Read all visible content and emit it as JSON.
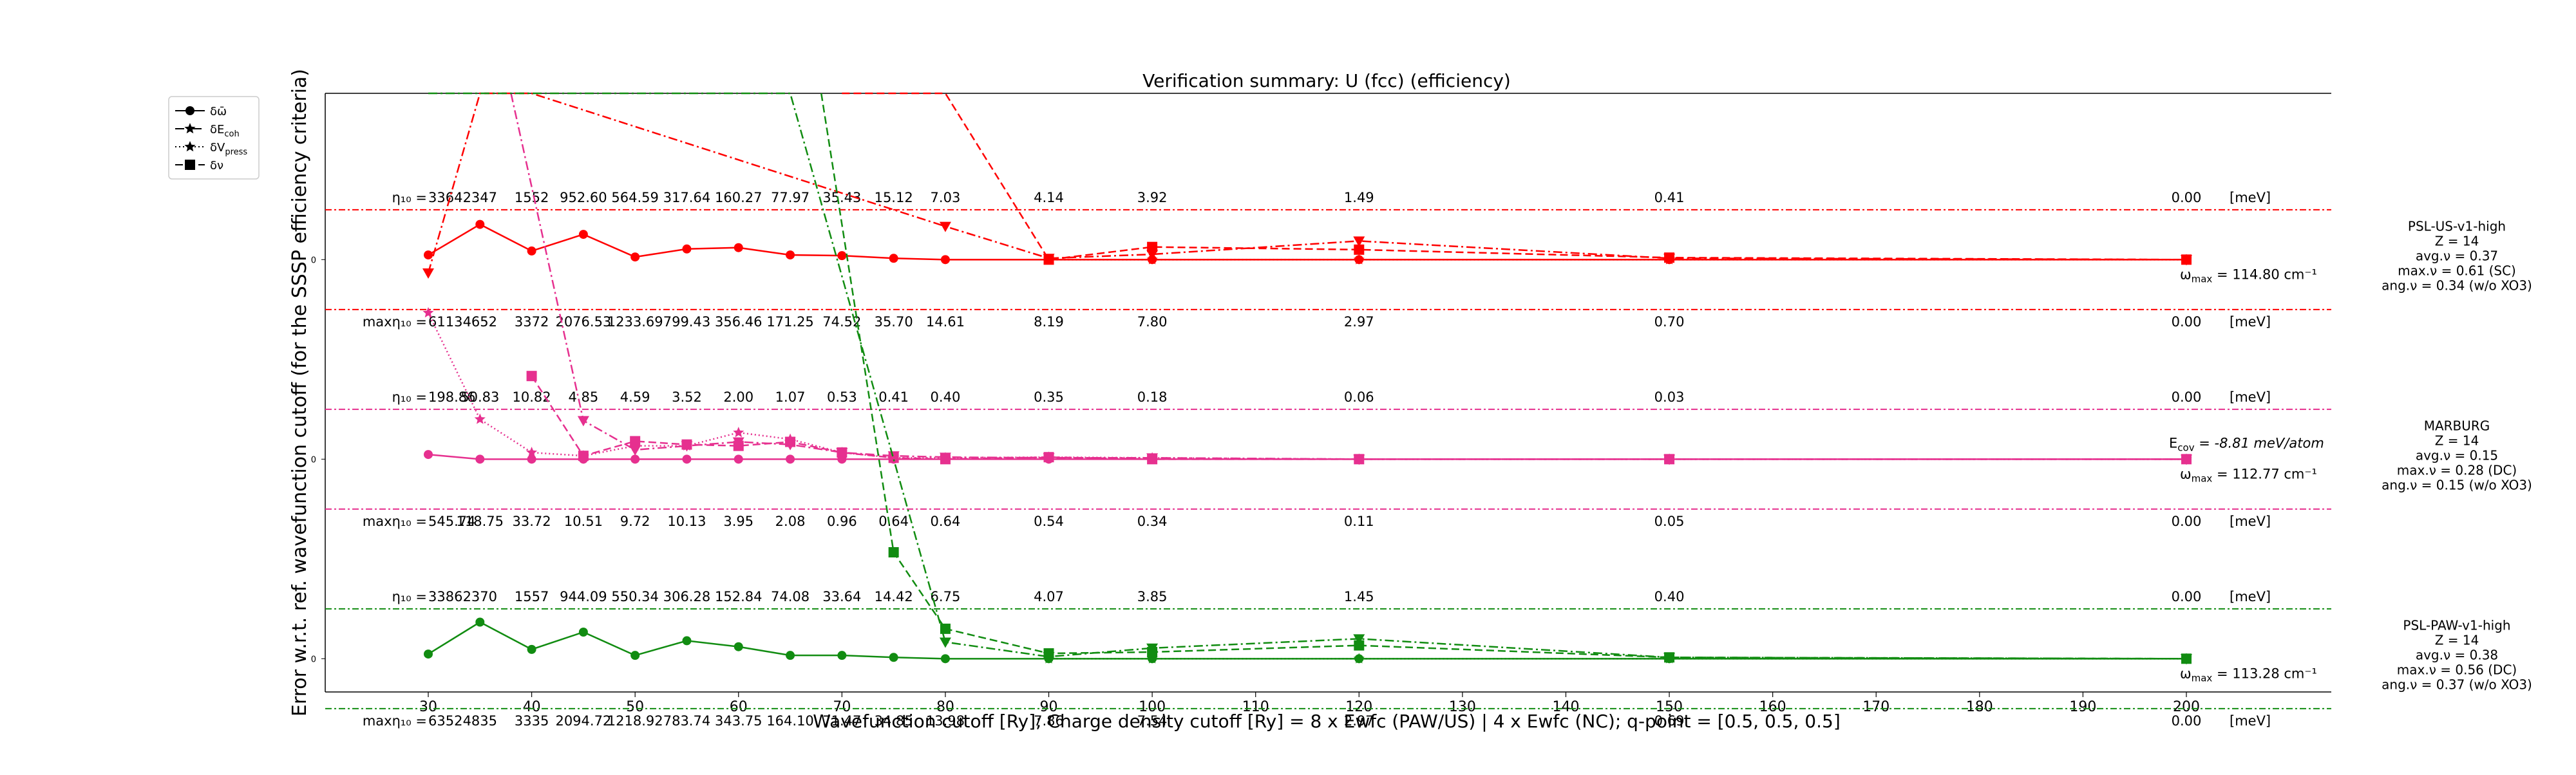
{
  "chart_data": {
    "type": "line",
    "title": "Verification summary: U (fcc) (efficiency)",
    "xlabel": "Wavefunction cutoff [Ry]; Charge density cutoff [Ry] = 8 x Ewfc (PAW/US) | 4 x Ewfc (NC); q-point = [0.5, 0.5, 0.5]",
    "ylabel": "Error w.r.t. ref. wavefunction cutoff (for the SSSP efficiency criteria)",
    "xlim": [
      20,
      215
    ],
    "xticks": [
      30,
      40,
      50,
      60,
      70,
      80,
      90,
      100,
      110,
      120,
      130,
      140,
      150,
      160,
      170,
      180,
      190,
      200
    ],
    "ylim": [
      -0.5,
      8.5
    ],
    "legend": {
      "placement": "outside-top-left",
      "entries": [
        {
          "label": "δω̄",
          "style": "solid",
          "marker": "circle"
        },
        {
          "label": "δE",
          "sub": "coh",
          "style": "dashdot",
          "marker": "star"
        },
        {
          "label": "δV",
          "sub": "press",
          "style": "dotted",
          "marker": "star"
        },
        {
          "label": "δν",
          "style": "dashed",
          "marker": "square"
        }
      ]
    },
    "panels": [
      {
        "name": "PSL-US-v1-high",
        "color": "#ff0000",
        "offset": 6,
        "zero_label": "0",
        "info": [
          "PSL-US-v1-high",
          "Z = 14",
          "avg.ν = 0.37",
          "max.ν = 0.61 (SC)",
          "ang.ν = 0.34 (w/o XO3)"
        ],
        "omega_label": "ω",
        "omega_sub": "max",
        "omega_value": " = 114.80 cm⁻¹",
        "eta_prefix": "η₁₀ = ",
        "eta_x": [
          30,
          35,
          40,
          45,
          50,
          55,
          60,
          65,
          70,
          75,
          80,
          90,
          100,
          120,
          150,
          200
        ],
        "eta": [
          "3364",
          "2347",
          "1552",
          "952.60",
          "564.59",
          "317.64",
          "160.27",
          "77.97",
          "35.43",
          "15.12",
          "7.03",
          "4.14",
          "3.92",
          "1.49",
          "0.41",
          "0.00"
        ],
        "eta_unit": "[meV]",
        "maxeta_prefix": "maxη₁₀ = ",
        "maxeta": [
          "6113",
          "4652",
          "3372",
          "2076.53",
          "1233.69",
          "799.43",
          "356.46",
          "171.25",
          "74.52",
          "35.70",
          "14.61",
          "8.19",
          "7.80",
          "2.97",
          "0.70",
          "0.00"
        ],
        "maxeta_x": [
          30,
          35,
          40,
          45,
          50,
          55,
          60,
          65,
          70,
          75,
          80,
          90,
          100,
          120,
          150,
          200
        ],
        "maxeta_unit": "[meV]",
        "series": [
          {
            "name": "δω̄",
            "x": [
              30,
              35,
              40,
              45,
              50,
              55,
              60,
              65,
              70,
              75,
              80,
              90,
              100,
              120,
              150,
              200
            ],
            "y": [
              0.07,
              0.53,
              0.13,
              0.38,
              0.04,
              0.16,
              0.18,
              0.07,
              0.06,
              0.02,
              0.0,
              0.0,
              0.0,
              0.0,
              0.0,
              0.0
            ]
          },
          {
            "name": "δE_coh",
            "x": [
              30,
              35,
              40,
              80,
              90,
              100,
              120,
              150,
              200
            ],
            "y": [
              -0.2,
              6.2,
              8.7,
              0.5,
              0.02,
              0.08,
              0.28,
              0.02,
              0.0
            ]
          },
          {
            "name": "δV_press",
            "x": [
              90,
              100,
              120,
              150,
              200
            ],
            "y": [
              0.0,
              0.0,
              0.0,
              0.0,
              0.0
            ]
          },
          {
            "name": "δν",
            "x": [
              70,
              80,
              90,
              100,
              120,
              150,
              200
            ],
            "y": [
              6.5,
              2.8,
              0.0,
              0.19,
              0.15,
              0.03,
              0.0
            ]
          }
        ]
      },
      {
        "name": "MARBURG",
        "color": "#e6308f",
        "offset": 3,
        "zero_label": "0",
        "info": [
          "MARBURG",
          "Z = 14",
          "avg.ν = 0.15",
          "max.ν = 0.28 (DC)",
          "ang.ν = 0.15 (w/o XO3)"
        ],
        "omega_label": "ω",
        "omega_sub": "max",
        "omega_value": " = 112.77 cm⁻¹",
        "ecov_label": "E",
        "ecov_sub": "cov",
        "ecov_value": " = -8.81 meV/atom",
        "eta_prefix": "η₁₀ = ",
        "eta_x": [
          30,
          35,
          40,
          45,
          50,
          55,
          60,
          65,
          70,
          75,
          80,
          90,
          100,
          120,
          150,
          200
        ],
        "eta": [
          "198.86",
          "50.83",
          "10.82",
          "4.85",
          "4.59",
          "3.52",
          "2.00",
          "1.07",
          "0.53",
          "0.41",
          "0.40",
          "0.35",
          "0.18",
          "0.06",
          "0.03",
          "0.00"
        ],
        "eta_unit": "[meV]",
        "maxeta_prefix": "maxη₁₀ = ",
        "maxeta": [
          "545.74",
          "118.75",
          "33.72",
          "10.51",
          "9.72",
          "10.13",
          "3.95",
          "2.08",
          "0.96",
          "0.64",
          "0.64",
          "0.54",
          "0.34",
          "0.11",
          "0.05",
          "0.00"
        ],
        "maxeta_x": [
          30,
          35,
          40,
          45,
          50,
          55,
          60,
          65,
          70,
          75,
          80,
          90,
          100,
          120,
          150,
          200
        ],
        "maxeta_unit": "[meV]",
        "series": [
          {
            "name": "δω̄",
            "x": [
              30,
              35,
              40,
              45,
              50,
              55,
              60,
              65,
              70,
              75,
              80,
              90,
              100,
              120,
              150,
              200
            ],
            "y": [
              0.07,
              0.0,
              0.0,
              0.0,
              0.0,
              0.0,
              0.0,
              0.0,
              0.0,
              0.0,
              0.0,
              0.0,
              0.0,
              0.0,
              0.0,
              0.0
            ]
          },
          {
            "name": "δE_coh",
            "x": [
              38,
              45,
              50,
              55,
              60,
              65,
              70,
              75,
              80,
              90,
              100,
              120,
              150,
              200
            ],
            "y": [
              8.7,
              0.58,
              0.14,
              0.2,
              0.26,
              0.22,
              0.1,
              0.05,
              0.03,
              0.02,
              0.02,
              0.0,
              0.0,
              0.0
            ]
          },
          {
            "name": "δV_press",
            "x": [
              30,
              35,
              40,
              45,
              50,
              55,
              60,
              65,
              70,
              75,
              80,
              90,
              100,
              120,
              150,
              200
            ],
            "y": [
              2.2,
              0.6,
              0.1,
              0.05,
              0.2,
              0.2,
              0.4,
              0.3,
              0.1,
              0.02,
              0.02,
              0.03,
              0.02,
              0.0,
              0.0,
              0.0
            ]
          },
          {
            "name": "δν",
            "x": [
              40,
              45,
              50,
              55,
              60,
              65,
              70,
              75,
              80,
              90,
              100,
              120,
              150,
              200
            ],
            "y": [
              1.25,
              0.05,
              0.27,
              0.22,
              0.2,
              0.26,
              0.1,
              0.02,
              0.0,
              0.03,
              0.0,
              0.0,
              0.0,
              0.0
            ]
          }
        ]
      },
      {
        "name": "PSL-PAW-v1-high",
        "color": "#118c11",
        "offset": 0,
        "zero_label": "0",
        "info": [
          "PSL-PAW-v1-high",
          "Z = 14",
          "avg.ν = 0.38",
          "max.ν = 0.56 (DC)",
          "ang.ν = 0.37 (w/o XO3)"
        ],
        "omega_label": "ω",
        "omega_sub": "max",
        "omega_value": " = 113.28 cm⁻¹",
        "eta_prefix": "η₁₀ = ",
        "eta_x": [
          30,
          35,
          40,
          45,
          50,
          55,
          60,
          65,
          70,
          75,
          80,
          90,
          100,
          120,
          150,
          200
        ],
        "eta": [
          "3386",
          "2370",
          "1557",
          "944.09",
          "550.34",
          "306.28",
          "152.84",
          "74.08",
          "33.64",
          "14.42",
          "6.75",
          "4.07",
          "3.85",
          "1.45",
          "0.40",
          "0.00"
        ],
        "eta_unit": "[meV]",
        "maxeta_prefix": "maxη₁₀ = ",
        "maxeta": [
          "6352",
          "4835",
          "3335",
          "2094.72",
          "1218.92",
          "783.74",
          "343.75",
          "164.10",
          "71.47",
          "34.85",
          "13.98",
          "7.86",
          "7.54",
          "2.97",
          "0.69",
          "0.00"
        ],
        "maxeta_x": [
          30,
          35,
          40,
          45,
          50,
          55,
          60,
          65,
          70,
          75,
          80,
          90,
          100,
          120,
          150,
          200
        ],
        "maxeta_unit": "[meV]",
        "series": [
          {
            "name": "δω̄",
            "x": [
              30,
              35,
              40,
              45,
              50,
              55,
              60,
              65,
              70,
              75,
              80,
              90,
              100,
              120,
              150,
              200
            ],
            "y": [
              0.07,
              0.55,
              0.14,
              0.4,
              0.05,
              0.27,
              0.18,
              0.05,
              0.05,
              0.02,
              0.0,
              0.0,
              0.0,
              0.0,
              0.0,
              0.0
            ]
          },
          {
            "name": "δE_coh",
            "x": [
              30,
              35,
              65,
              80,
              90,
              100,
              120,
              150,
              200
            ],
            "y": [
              8.7,
              8.7,
              8.7,
              0.25,
              0.03,
              0.16,
              0.3,
              0.02,
              0.0
            ]
          },
          {
            "name": "δV_press",
            "x": [
              90,
              100,
              120,
              150,
              200
            ],
            "y": [
              0.0,
              0.0,
              0.0,
              0.0,
              0.0
            ]
          },
          {
            "name": "δν",
            "x": [
              68,
              75,
              80,
              90,
              100,
              120,
              150,
              200
            ],
            "y": [
              8.7,
              1.6,
              0.45,
              0.08,
              0.1,
              0.2,
              0.02,
              0.0
            ]
          }
        ]
      }
    ]
  }
}
